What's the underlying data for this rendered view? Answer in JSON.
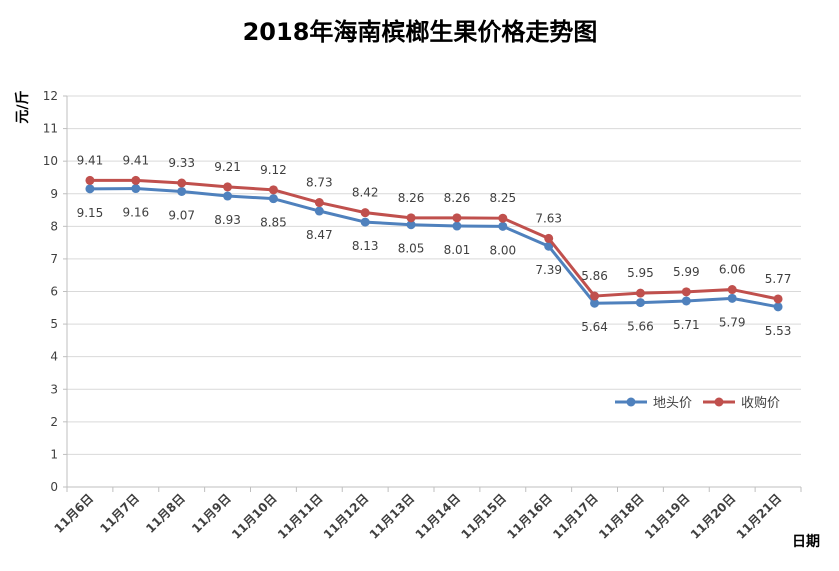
{
  "chart_data": {
    "type": "line",
    "title": "2018年海南槟榔生果价格走势图",
    "xlabel": "日期",
    "ylabel": "元/斤",
    "ylim": [
      0,
      12
    ],
    "yticks": [
      0,
      1,
      2,
      3,
      4,
      5,
      6,
      7,
      8,
      9,
      10,
      11,
      12
    ],
    "grid": true,
    "legend_position": "right",
    "categories": [
      "11月6日",
      "11月7日",
      "11月8日",
      "11月9日",
      "11月10日",
      "11月11日",
      "11月12日",
      "11月13日",
      "11月14日",
      "11月15日",
      "11月16日",
      "11月17日",
      "11月18日",
      "11月19日",
      "11月20日",
      "11月21日"
    ],
    "series": [
      {
        "name": "地头价",
        "color": "#4f81bd",
        "values": [
          9.15,
          9.16,
          9.07,
          8.93,
          8.85,
          8.47,
          8.13,
          8.05,
          8.01,
          8.0,
          7.39,
          5.64,
          5.66,
          5.71,
          5.79,
          5.53
        ],
        "labels": [
          "9.15",
          "9.16",
          "9.07",
          "8.93",
          "8.85",
          "8.47",
          "8.13",
          "8.05",
          "8.01",
          "8.00",
          "7.39",
          "5.64",
          "5.66",
          "5.71",
          "5.79",
          "5.53"
        ],
        "label_position": "below"
      },
      {
        "name": "收购价",
        "color": "#c0504d",
        "values": [
          9.41,
          9.41,
          9.33,
          9.21,
          9.12,
          8.73,
          8.42,
          8.26,
          8.26,
          8.25,
          7.63,
          5.86,
          5.95,
          5.99,
          6.06,
          5.77
        ],
        "labels": [
          "9.41",
          "9.41",
          "9.33",
          "9.21",
          "9.12",
          "8.73",
          "8.42",
          "8.26",
          "8.26",
          "8.25",
          "7.63",
          "5.86",
          "5.95",
          "5.99",
          "6.06",
          "5.77"
        ],
        "label_position": "above"
      }
    ]
  }
}
